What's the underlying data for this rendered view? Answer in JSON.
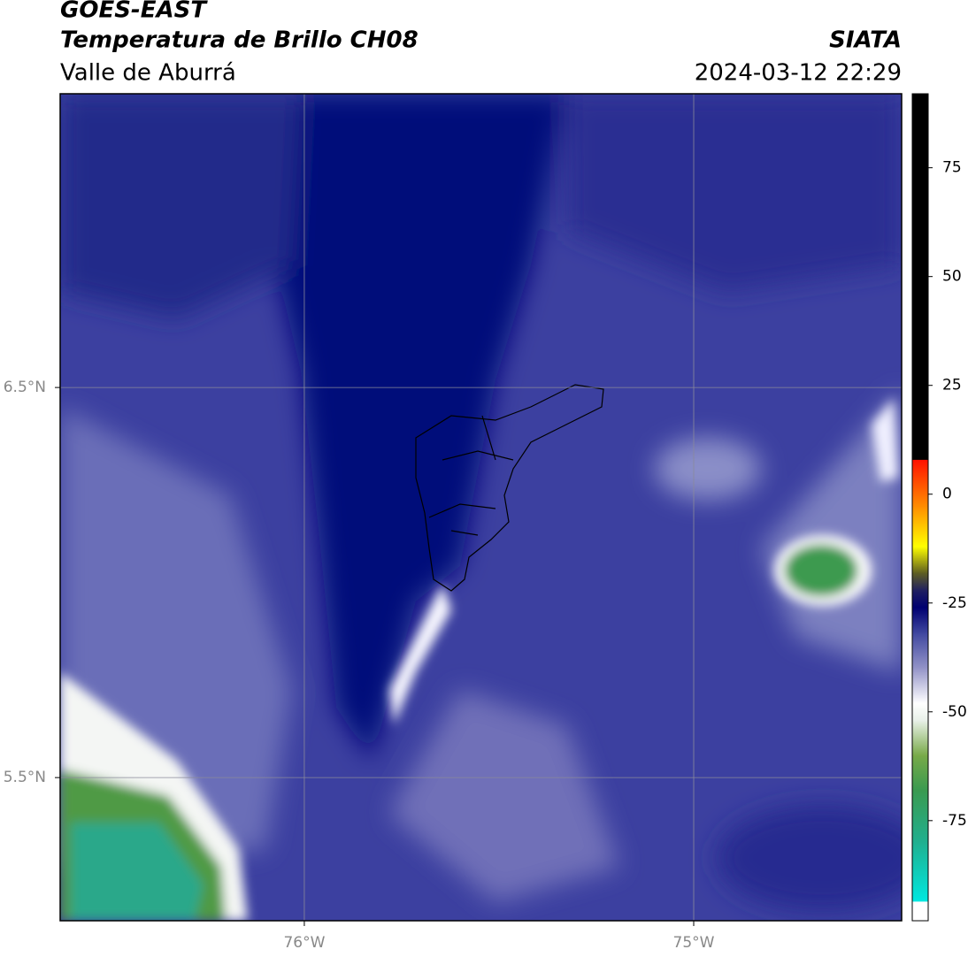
{
  "header": {
    "title": "GOES-EAST",
    "subtitle": "Temperatura de Brillo CH08",
    "region": "Valle de Aburrá",
    "source": "SIATA",
    "timestamp": "2024-03-12 22:29"
  },
  "map": {
    "xlim": [
      -76.627,
      -74.466
    ],
    "ylim": [
      5.133,
      7.253
    ],
    "xticks": [
      {
        "value": -76,
        "label": "76°W"
      },
      {
        "value": -75,
        "label": "75°W"
      }
    ],
    "yticks": [
      {
        "value": 6.5,
        "label": "6.5°N"
      },
      {
        "value": 5.5,
        "label": "5.5°N"
      }
    ],
    "grid": true,
    "grid_color": "#8a8a9a"
  },
  "colorbar": {
    "lim": [
      -98,
      92
    ],
    "ticks": [
      -75,
      -50,
      -25,
      0,
      25,
      50,
      75
    ],
    "stops": [
      {
        "value": -98,
        "color": "#ffffff"
      },
      {
        "value": -93.5,
        "color": "#ffffff"
      },
      {
        "value": -93.5,
        "color": "#00e8e0"
      },
      {
        "value": -80,
        "color": "#20b090"
      },
      {
        "value": -68,
        "color": "#3a9a50"
      },
      {
        "value": -60,
        "color": "#78aa48"
      },
      {
        "value": -52,
        "color": "#e8f0e8"
      },
      {
        "value": -48,
        "color": "#ffffff"
      },
      {
        "value": -40,
        "color": "#9494c8"
      },
      {
        "value": -32,
        "color": "#4048a0"
      },
      {
        "value": -26,
        "color": "#000070"
      },
      {
        "value": -22,
        "color": "#202060"
      },
      {
        "value": -18,
        "color": "#606020"
      },
      {
        "value": -12,
        "color": "#ffff00"
      },
      {
        "value": -3,
        "color": "#ff9000"
      },
      {
        "value": 8,
        "color": "#ff1000"
      },
      {
        "value": 8,
        "color": "#000000"
      },
      {
        "value": 92,
        "color": "#000000"
      }
    ]
  }
}
